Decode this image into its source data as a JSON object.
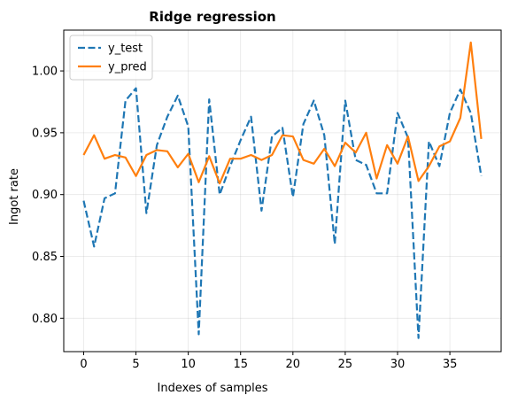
{
  "chart_data": {
    "type": "line",
    "title": "Ridge regression",
    "xlabel": "Indexes of samples",
    "ylabel": "Ingot rate",
    "xlim": [
      -1.9,
      39.9
    ],
    "ylim": [
      0.773,
      1.033
    ],
    "xticks": [
      0,
      5,
      10,
      15,
      20,
      25,
      30,
      35
    ],
    "yticks": [
      0.8,
      0.85,
      0.9,
      0.95,
      1.0
    ],
    "ytick_labels": [
      "0.80",
      "0.85",
      "0.90",
      "0.95",
      "1.00"
    ],
    "grid": true,
    "legend_position": "top-left",
    "x": [
      0,
      1,
      2,
      3,
      4,
      5,
      6,
      7,
      8,
      9,
      10,
      11,
      12,
      13,
      14,
      15,
      16,
      17,
      18,
      19,
      20,
      21,
      22,
      23,
      24,
      25,
      26,
      27,
      28,
      29,
      30,
      31,
      32,
      33,
      34,
      35,
      36,
      37,
      38
    ],
    "series": [
      {
        "name": "y_test",
        "color": "#1f77b4",
        "style": "dashed",
        "values": [
          0.895,
          0.858,
          0.897,
          0.901,
          0.976,
          0.986,
          0.885,
          0.94,
          0.963,
          0.98,
          0.955,
          0.787,
          0.977,
          0.9,
          0.923,
          0.944,
          0.963,
          0.887,
          0.947,
          0.954,
          0.898,
          0.957,
          0.976,
          0.948,
          0.86,
          0.976,
          0.928,
          0.924,
          0.901,
          0.901,
          0.966,
          0.946,
          0.784,
          0.943,
          0.923,
          0.966,
          0.985,
          0.966,
          0.915
        ]
      },
      {
        "name": "y_pred",
        "color": "#ff7f0e",
        "style": "solid",
        "values": [
          0.932,
          0.948,
          0.929,
          0.932,
          0.93,
          0.915,
          0.932,
          0.936,
          0.935,
          0.922,
          0.933,
          0.91,
          0.931,
          0.909,
          0.929,
          0.929,
          0.932,
          0.928,
          0.932,
          0.948,
          0.947,
          0.928,
          0.925,
          0.937,
          0.923,
          0.942,
          0.934,
          0.95,
          0.913,
          0.94,
          0.925,
          0.947,
          0.911,
          0.923,
          0.939,
          0.943,
          0.962,
          1.023,
          0.945
        ]
      }
    ]
  }
}
